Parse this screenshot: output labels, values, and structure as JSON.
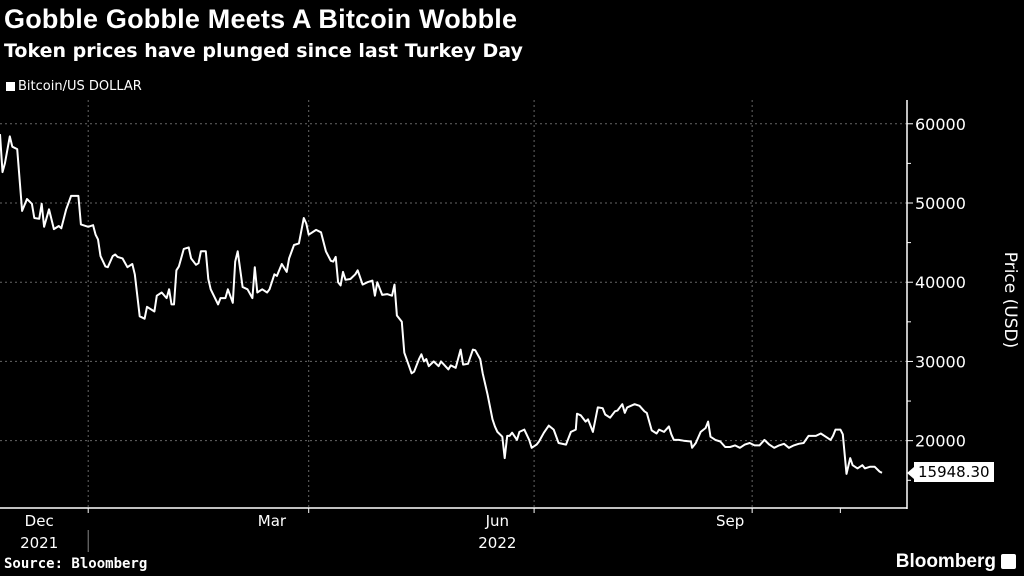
{
  "header": {
    "title": "Gobble Gobble Meets A Bitcoin Wobble",
    "subtitle": "Token prices have plunged since last Turkey Day"
  },
  "footer": {
    "source": "Source: Bloomberg",
    "brand": "Bloomberg"
  },
  "colors": {
    "background": "#000000",
    "line": "#ffffff",
    "grid": "#666666"
  },
  "chart_data": {
    "type": "line",
    "title": "Gobble Gobble Meets A Bitcoin Wobble",
    "subtitle": "Token prices have plunged since last Turkey Day",
    "legend": [
      {
        "label": "Bitcoin/US DOLLAR",
        "color": "#ffffff"
      }
    ],
    "legend_position": "top-left",
    "ylabel": "Price (USD)",
    "xlabel": "",
    "ylim": [
      11500,
      63000
    ],
    "yticks": [
      20000,
      30000,
      40000,
      50000,
      60000
    ],
    "ytick_labels": [
      "20000",
      "30000",
      "40000",
      "50000",
      "60000"
    ],
    "x_unit": "days since 2021-11-25",
    "xlim": [
      0,
      370
    ],
    "x_grid_days": [
      36,
      126,
      218,
      307
    ],
    "x_tick_days": [
      36,
      126,
      218,
      307,
      343
    ],
    "xtick_labels": [
      {
        "day": 16,
        "label": "Dec",
        "year": "2021"
      },
      {
        "day": 111,
        "label": "Mar"
      },
      {
        "day": 203,
        "label": "Jun",
        "year": "2022"
      },
      {
        "day": 298,
        "label": "Sep"
      }
    ],
    "grid": true,
    "last_value_label": "15948.30",
    "last_value": 15948.3,
    "series": [
      {
        "name": "Bitcoin/US DOLLAR",
        "points": [
          [
            0,
            58700
          ],
          [
            1,
            53900
          ],
          [
            2,
            55000
          ],
          [
            4,
            58400
          ],
          [
            5,
            57100
          ],
          [
            7,
            56800
          ],
          [
            9,
            49000
          ],
          [
            11,
            50500
          ],
          [
            13,
            49900
          ],
          [
            14,
            48100
          ],
          [
            16,
            48000
          ],
          [
            17,
            49900
          ],
          [
            18,
            47000
          ],
          [
            20,
            49200
          ],
          [
            22,
            46700
          ],
          [
            24,
            47100
          ],
          [
            25,
            46800
          ],
          [
            27,
            49200
          ],
          [
            29,
            50900
          ],
          [
            32,
            50900
          ],
          [
            33,
            47300
          ],
          [
            36,
            47000
          ],
          [
            38,
            47200
          ],
          [
            39,
            46000
          ],
          [
            40,
            45400
          ],
          [
            41,
            43300
          ],
          [
            43,
            42000
          ],
          [
            44,
            41900
          ],
          [
            46,
            43300
          ],
          [
            47,
            43500
          ],
          [
            48,
            43200
          ],
          [
            50,
            43000
          ],
          [
            52,
            41900
          ],
          [
            54,
            42300
          ],
          [
            55,
            41000
          ],
          [
            57,
            35700
          ],
          [
            59,
            35400
          ],
          [
            60,
            36900
          ],
          [
            63,
            36300
          ],
          [
            64,
            38300
          ],
          [
            66,
            38700
          ],
          [
            68,
            38000
          ],
          [
            69,
            39100
          ],
          [
            70,
            37200
          ],
          [
            71,
            37200
          ],
          [
            72,
            41500
          ],
          [
            73,
            42000
          ],
          [
            75,
            44200
          ],
          [
            77,
            44400
          ],
          [
            78,
            43000
          ],
          [
            80,
            42200
          ],
          [
            81,
            42400
          ],
          [
            82,
            43900
          ],
          [
            84,
            43900
          ],
          [
            85,
            40400
          ],
          [
            86,
            39100
          ],
          [
            89,
            37200
          ],
          [
            90,
            38000
          ],
          [
            92,
            38000
          ],
          [
            93,
            39100
          ],
          [
            95,
            37400
          ],
          [
            96,
            42600
          ],
          [
            97,
            43900
          ],
          [
            99,
            39400
          ],
          [
            101,
            39100
          ],
          [
            103,
            38000
          ],
          [
            104,
            41900
          ],
          [
            105,
            38700
          ],
          [
            107,
            39100
          ],
          [
            109,
            38700
          ],
          [
            110,
            39100
          ],
          [
            112,
            41000
          ],
          [
            113,
            40800
          ],
          [
            115,
            42300
          ],
          [
            117,
            41300
          ],
          [
            118,
            43000
          ],
          [
            120,
            44700
          ],
          [
            122,
            44900
          ],
          [
            124,
            48100
          ],
          [
            125,
            47400
          ],
          [
            126,
            46000
          ],
          [
            129,
            46600
          ],
          [
            131,
            46300
          ],
          [
            133,
            43900
          ],
          [
            135,
            42700
          ],
          [
            136,
            42600
          ],
          [
            137,
            43200
          ],
          [
            138,
            40000
          ],
          [
            139,
            39600
          ],
          [
            140,
            41300
          ],
          [
            141,
            40300
          ],
          [
            143,
            40400
          ],
          [
            145,
            41000
          ],
          [
            146,
            41500
          ],
          [
            148,
            39700
          ],
          [
            150,
            40000
          ],
          [
            152,
            40200
          ],
          [
            153,
            38300
          ],
          [
            154,
            40000
          ],
          [
            156,
            38400
          ],
          [
            158,
            38500
          ],
          [
            160,
            38300
          ],
          [
            161,
            39700
          ],
          [
            162,
            35800
          ],
          [
            164,
            35000
          ],
          [
            165,
            31100
          ],
          [
            168,
            28500
          ],
          [
            169,
            28700
          ],
          [
            171,
            30300
          ],
          [
            172,
            30900
          ],
          [
            173,
            30000
          ],
          [
            174,
            30300
          ],
          [
            175,
            29400
          ],
          [
            177,
            30000
          ],
          [
            179,
            29400
          ],
          [
            180,
            30000
          ],
          [
            183,
            29000
          ],
          [
            184,
            29500
          ],
          [
            186,
            29200
          ],
          [
            188,
            31500
          ],
          [
            189,
            29600
          ],
          [
            191,
            29700
          ],
          [
            193,
            31500
          ],
          [
            194,
            31400
          ],
          [
            196,
            30300
          ],
          [
            197,
            28500
          ],
          [
            199,
            25800
          ],
          [
            201,
            22700
          ],
          [
            202,
            21800
          ],
          [
            203,
            21100
          ],
          [
            205,
            20500
          ],
          [
            206,
            17800
          ],
          [
            207,
            20600
          ],
          [
            208,
            20600
          ],
          [
            209,
            21000
          ],
          [
            211,
            20100
          ],
          [
            212,
            21100
          ],
          [
            214,
            21400
          ],
          [
            216,
            20100
          ],
          [
            217,
            19100
          ],
          [
            219,
            19500
          ],
          [
            220,
            19900
          ],
          [
            222,
            21000
          ],
          [
            224,
            21900
          ],
          [
            226,
            21400
          ],
          [
            228,
            19700
          ],
          [
            231,
            19500
          ],
          [
            233,
            21100
          ],
          [
            235,
            21400
          ],
          [
            235.5,
            23400
          ],
          [
            237,
            23200
          ],
          [
            239,
            22400
          ],
          [
            240,
            22700
          ],
          [
            242,
            21100
          ],
          [
            244,
            24200
          ],
          [
            246,
            24100
          ],
          [
            247,
            23300
          ],
          [
            249,
            22900
          ],
          [
            251,
            23700
          ],
          [
            252,
            23800
          ],
          [
            254,
            24600
          ],
          [
            255,
            23500
          ],
          [
            256,
            24200
          ],
          [
            259,
            24600
          ],
          [
            261,
            24400
          ],
          [
            263,
            23700
          ],
          [
            264,
            23500
          ],
          [
            266,
            21300
          ],
          [
            268,
            20900
          ],
          [
            269,
            21400
          ],
          [
            271,
            21100
          ],
          [
            273,
            21800
          ],
          [
            274,
            20800
          ],
          [
            275,
            20100
          ],
          [
            277,
            20100
          ],
          [
            279,
            20000
          ],
          [
            282,
            19900
          ],
          [
            282.5,
            19100
          ],
          [
            284,
            19700
          ],
          [
            286,
            21100
          ],
          [
            288,
            21600
          ],
          [
            289,
            22400
          ],
          [
            290,
            20500
          ],
          [
            292,
            20100
          ],
          [
            294,
            19900
          ],
          [
            296,
            19200
          ],
          [
            298,
            19200
          ],
          [
            300,
            19400
          ],
          [
            302,
            19100
          ],
          [
            304,
            19500
          ],
          [
            306,
            19700
          ],
          [
            308,
            19400
          ],
          [
            310,
            19400
          ],
          [
            312,
            20100
          ],
          [
            314,
            19500
          ],
          [
            316,
            19100
          ],
          [
            318,
            19400
          ],
          [
            320,
            19600
          ],
          [
            322,
            19100
          ],
          [
            324,
            19400
          ],
          [
            326,
            19600
          ],
          [
            328,
            19700
          ],
          [
            330,
            20600
          ],
          [
            333,
            20600
          ],
          [
            335,
            20900
          ],
          [
            337,
            20500
          ],
          [
            339,
            20100
          ],
          [
            340,
            20600
          ],
          [
            341,
            21400
          ],
          [
            343,
            21400
          ],
          [
            344,
            20800
          ],
          [
            345.5,
            15800
          ],
          [
            347,
            17800
          ],
          [
            348,
            16900
          ],
          [
            350,
            16500
          ],
          [
            352,
            16900
          ],
          [
            353,
            16500
          ],
          [
            355,
            16700
          ],
          [
            357,
            16700
          ],
          [
            359,
            16100
          ],
          [
            360,
            15948.3
          ]
        ]
      }
    ]
  }
}
